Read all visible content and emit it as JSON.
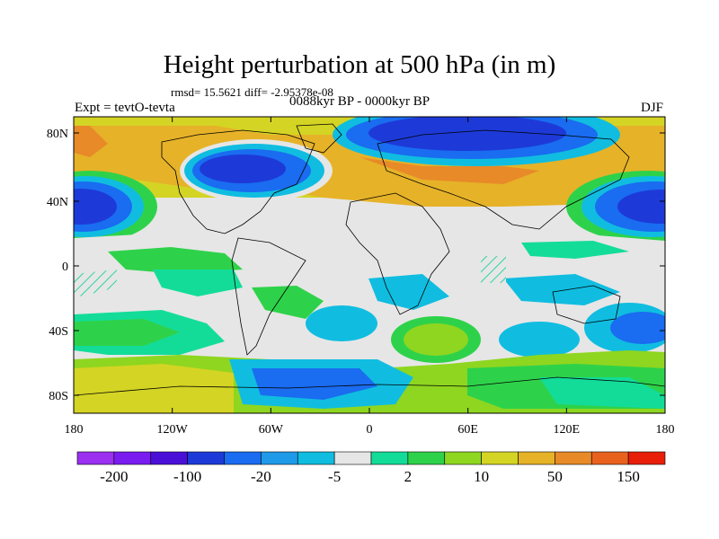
{
  "title": "Height perturbation at 500 hPa (in m)",
  "stats": "rmsd= 15.5621 diff= -2.95378e-08",
  "experiment": "Expt = tevtO-tevta",
  "period": "0088kyr BP - 0000kyr BP",
  "season": "DJF",
  "lat_ticks": [
    "80N",
    "40N",
    "0",
    "40S",
    "80S"
  ],
  "lon_ticks": [
    "180",
    "120W",
    "60W",
    "0",
    "60E",
    "120E",
    "180"
  ],
  "colorbar": {
    "labels": [
      "-200",
      "-100",
      "-20",
      "-5",
      "2",
      "10",
      "50",
      "150"
    ],
    "colors": [
      "#9b30f0",
      "#7a1cf0",
      "#4a10d8",
      "#1d3ad8",
      "#1a6cf0",
      "#1e9ae8",
      "#10bde0",
      "#e6e6e6",
      "#13dc99",
      "#2ed24a",
      "#8ed620",
      "#d4d424",
      "#e6b228",
      "#e88a28",
      "#e8621e",
      "#e81e08"
    ]
  },
  "fields": {
    "ocean_bg": "#e6e6e6",
    "land_line": "#000000"
  }
}
